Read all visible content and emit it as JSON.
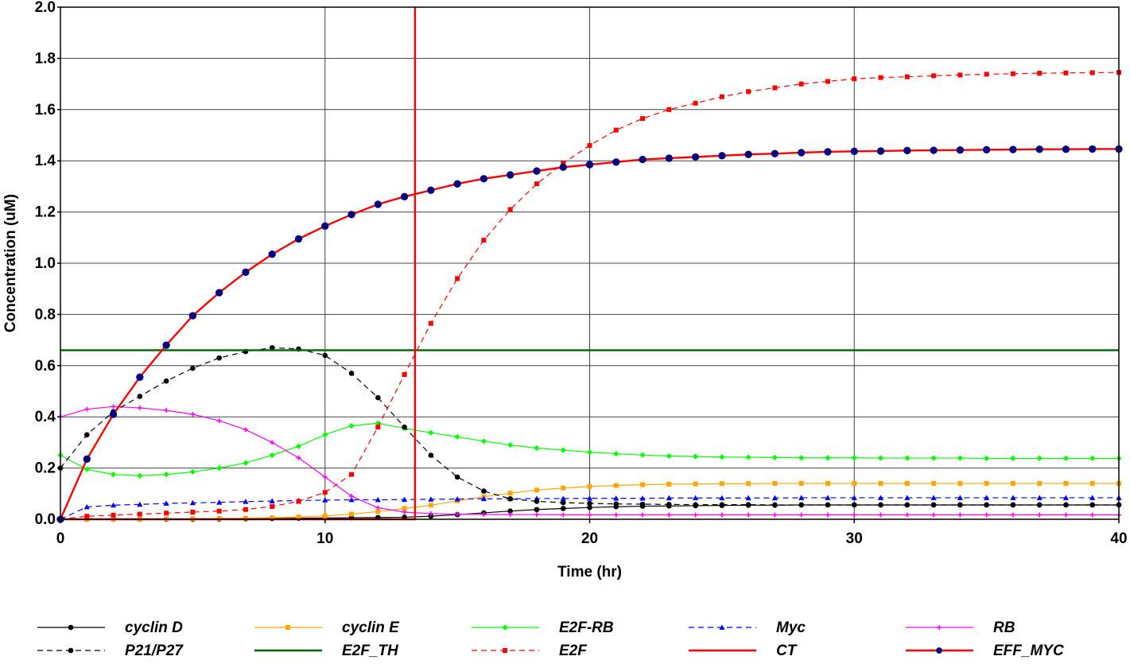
{
  "chart_data": {
    "type": "line",
    "title": "",
    "xlabel": "Time (hr)",
    "ylabel": "Concentration (uM)",
    "xlim": [
      0,
      40
    ],
    "ylim": [
      0,
      2.0
    ],
    "x_ticks": [
      0,
      10,
      20,
      30,
      40
    ],
    "x_tick_labels": [
      "0",
      "10",
      "20",
      "30",
      "40"
    ],
    "y_ticks": [
      0,
      0.2,
      0.4,
      0.6,
      0.8,
      1.0,
      1.2,
      1.4,
      1.6,
      1.8,
      2.0
    ],
    "y_tick_labels": [
      "0.0",
      "0.2",
      "0.4",
      "0.6",
      "0.8",
      "1.0",
      "1.2",
      "1.4",
      "1.6",
      "1.8",
      "2.0"
    ],
    "grid": true,
    "legend_position": "bottom",
    "annotations": [
      {
        "kind": "vertical-line",
        "x": 13.4,
        "color": "#ff0000"
      }
    ],
    "series": [
      {
        "name": "cyclin D",
        "color": "#000000",
        "line": "solid",
        "marker": "circle",
        "x": [
          0,
          1,
          2,
          3,
          4,
          5,
          6,
          7,
          8,
          9,
          10,
          11,
          12,
          13,
          14,
          15,
          16,
          17,
          18,
          19,
          20,
          21,
          22,
          23,
          24,
          25,
          26,
          27,
          28,
          29,
          30,
          31,
          32,
          33,
          34,
          35,
          36,
          37,
          38,
          39,
          40
        ],
        "y": [
          0.0,
          0.0,
          0.0,
          0.0,
          0.0,
          0.0,
          0.001,
          0.002,
          0.003,
          0.004,
          0.005,
          0.006,
          0.007,
          0.008,
          0.012,
          0.018,
          0.025,
          0.032,
          0.038,
          0.042,
          0.046,
          0.049,
          0.051,
          0.052,
          0.053,
          0.054,
          0.055,
          0.055,
          0.056,
          0.056,
          0.056,
          0.056,
          0.056,
          0.056,
          0.056,
          0.056,
          0.056,
          0.056,
          0.056,
          0.056,
          0.056
        ]
      },
      {
        "name": "cyclin E",
        "color": "#ffa500",
        "line": "solid",
        "marker": "square",
        "x": [
          0,
          1,
          2,
          3,
          4,
          5,
          6,
          7,
          8,
          9,
          10,
          11,
          12,
          13,
          14,
          15,
          16,
          17,
          18,
          19,
          20,
          21,
          22,
          23,
          24,
          25,
          26,
          27,
          28,
          29,
          30,
          31,
          32,
          33,
          34,
          35,
          36,
          37,
          38,
          39,
          40
        ],
        "y": [
          0.0,
          0.0,
          0.0,
          0.0,
          0.001,
          0.002,
          0.003,
          0.004,
          0.006,
          0.009,
          0.013,
          0.02,
          0.03,
          0.042,
          0.055,
          0.072,
          0.088,
          0.102,
          0.114,
          0.122,
          0.128,
          0.132,
          0.135,
          0.137,
          0.138,
          0.139,
          0.139,
          0.14,
          0.14,
          0.14,
          0.14,
          0.14,
          0.14,
          0.14,
          0.14,
          0.14,
          0.14,
          0.14,
          0.14,
          0.14,
          0.14
        ]
      },
      {
        "name": "E2F-RB",
        "color": "#00ff00",
        "line": "solid",
        "marker": "diamond",
        "x": [
          0,
          1,
          2,
          3,
          4,
          5,
          6,
          7,
          8,
          9,
          10,
          11,
          12,
          13,
          14,
          15,
          16,
          17,
          18,
          19,
          20,
          21,
          22,
          23,
          24,
          25,
          26,
          27,
          28,
          29,
          30,
          31,
          32,
          33,
          34,
          35,
          36,
          37,
          38,
          39,
          40
        ],
        "y": [
          0.25,
          0.195,
          0.175,
          0.17,
          0.175,
          0.185,
          0.2,
          0.22,
          0.25,
          0.285,
          0.33,
          0.365,
          0.375,
          0.355,
          0.338,
          0.322,
          0.305,
          0.29,
          0.278,
          0.27,
          0.262,
          0.256,
          0.251,
          0.247,
          0.245,
          0.243,
          0.242,
          0.241,
          0.24,
          0.24,
          0.24,
          0.239,
          0.239,
          0.239,
          0.239,
          0.238,
          0.238,
          0.238,
          0.238,
          0.238,
          0.238
        ]
      },
      {
        "name": "Myc",
        "color": "#0000ff",
        "line": "dashed",
        "marker": "triangle",
        "x": [
          0,
          1,
          2,
          3,
          4,
          5,
          6,
          7,
          8,
          9,
          10,
          11,
          12,
          13,
          14,
          15,
          16,
          17,
          18,
          19,
          20,
          21,
          22,
          23,
          24,
          25,
          26,
          27,
          28,
          29,
          30,
          31,
          32,
          33,
          34,
          35,
          36,
          37,
          38,
          39,
          40
        ],
        "y": [
          0.0,
          0.048,
          0.055,
          0.058,
          0.062,
          0.064,
          0.066,
          0.069,
          0.071,
          0.073,
          0.075,
          0.076,
          0.076,
          0.077,
          0.078,
          0.079,
          0.08,
          0.08,
          0.081,
          0.081,
          0.082,
          0.082,
          0.082,
          0.083,
          0.083,
          0.083,
          0.083,
          0.083,
          0.084,
          0.084,
          0.084,
          0.084,
          0.084,
          0.084,
          0.084,
          0.084,
          0.084,
          0.084,
          0.084,
          0.084,
          0.084
        ]
      },
      {
        "name": "RB",
        "color": "#ff00ff",
        "line": "solid",
        "marker": "plus",
        "x": [
          0,
          1,
          2,
          3,
          4,
          5,
          6,
          7,
          8,
          9,
          10,
          11,
          12,
          13,
          14,
          15,
          16,
          17,
          18,
          19,
          20,
          21,
          22,
          23,
          24,
          25,
          26,
          27,
          28,
          29,
          30,
          31,
          32,
          33,
          34,
          35,
          36,
          37,
          38,
          39,
          40
        ],
        "y": [
          0.4,
          0.43,
          0.44,
          0.435,
          0.425,
          0.41,
          0.385,
          0.35,
          0.3,
          0.24,
          0.165,
          0.09,
          0.045,
          0.028,
          0.022,
          0.02,
          0.019,
          0.018,
          0.018,
          0.017,
          0.017,
          0.017,
          0.017,
          0.017,
          0.017,
          0.017,
          0.017,
          0.017,
          0.017,
          0.017,
          0.017,
          0.017,
          0.017,
          0.017,
          0.017,
          0.017,
          0.017,
          0.017,
          0.017,
          0.017,
          0.017
        ]
      },
      {
        "name": "P21/P27",
        "color": "#000000",
        "line": "dashed",
        "marker": "circle",
        "x": [
          0,
          1,
          2,
          3,
          4,
          5,
          6,
          7,
          8,
          9,
          10,
          11,
          12,
          13,
          14,
          15,
          16,
          17,
          18,
          19,
          20,
          21,
          22,
          23,
          24,
          25,
          26,
          27,
          28,
          29,
          30,
          31,
          32,
          33,
          34,
          35,
          36,
          37,
          38,
          39,
          40
        ],
        "y": [
          0.2,
          0.33,
          0.42,
          0.48,
          0.54,
          0.59,
          0.63,
          0.655,
          0.67,
          0.665,
          0.64,
          0.57,
          0.475,
          0.36,
          0.25,
          0.165,
          0.11,
          0.08,
          0.07,
          0.065,
          0.062,
          0.06,
          0.059,
          0.058,
          0.057,
          0.057,
          0.057,
          0.056,
          0.056,
          0.056,
          0.056,
          0.056,
          0.056,
          0.056,
          0.056,
          0.056,
          0.056,
          0.056,
          0.056,
          0.056,
          0.056
        ]
      },
      {
        "name": "E2F_TH",
        "color": "#006400",
        "line": "solid-thick",
        "marker": "none",
        "x": [
          0,
          40
        ],
        "y": [
          0.66,
          0.66
        ]
      },
      {
        "name": "E2F",
        "color": "#ff0000",
        "line": "dashed",
        "marker": "square",
        "x": [
          0,
          1,
          2,
          3,
          4,
          5,
          6,
          7,
          8,
          9,
          10,
          11,
          12,
          13,
          14,
          15,
          16,
          17,
          18,
          19,
          20,
          21,
          22,
          23,
          24,
          25,
          26,
          27,
          28,
          29,
          30,
          31,
          32,
          33,
          34,
          35,
          36,
          37,
          38,
          39,
          40
        ],
        "y": [
          0.0,
          0.012,
          0.016,
          0.02,
          0.024,
          0.028,
          0.032,
          0.038,
          0.05,
          0.07,
          0.105,
          0.175,
          0.36,
          0.565,
          0.765,
          0.94,
          1.09,
          1.21,
          1.31,
          1.39,
          1.46,
          1.52,
          1.565,
          1.6,
          1.625,
          1.65,
          1.67,
          1.685,
          1.7,
          1.71,
          1.72,
          1.725,
          1.728,
          1.732,
          1.735,
          1.738,
          1.74,
          1.742,
          1.743,
          1.744,
          1.745
        ]
      },
      {
        "name": "CT",
        "color": "#ff0000",
        "line": "solid-thick",
        "marker": "none",
        "x": [
          0,
          13.4,
          13.4
        ],
        "y": [
          0.0,
          0.0,
          2.0
        ]
      },
      {
        "name": "EFF_MYC",
        "color": "#ff0000",
        "marker_color": "#000080",
        "line": "solid-thick",
        "marker": "circle",
        "x": [
          0,
          1,
          2,
          3,
          4,
          5,
          6,
          7,
          8,
          9,
          10,
          11,
          12,
          13,
          14,
          15,
          16,
          17,
          18,
          19,
          20,
          21,
          22,
          23,
          24,
          25,
          26,
          27,
          28,
          29,
          30,
          31,
          32,
          33,
          34,
          35,
          36,
          37,
          38,
          39,
          40
        ],
        "y": [
          0.0,
          0.235,
          0.41,
          0.555,
          0.68,
          0.795,
          0.885,
          0.965,
          1.035,
          1.095,
          1.145,
          1.19,
          1.23,
          1.26,
          1.285,
          1.31,
          1.33,
          1.345,
          1.36,
          1.375,
          1.385,
          1.395,
          1.405,
          1.41,
          1.415,
          1.42,
          1.425,
          1.428,
          1.432,
          1.435,
          1.437,
          1.438,
          1.44,
          1.441,
          1.442,
          1.443,
          1.444,
          1.445,
          1.445,
          1.446,
          1.446
        ]
      }
    ],
    "legend_order": [
      "cyclin D",
      "cyclin E",
      "E2F-RB",
      "Myc",
      "RB",
      "P21/P27",
      "E2F_TH",
      "E2F",
      "CT",
      "EFF_MYC"
    ]
  }
}
